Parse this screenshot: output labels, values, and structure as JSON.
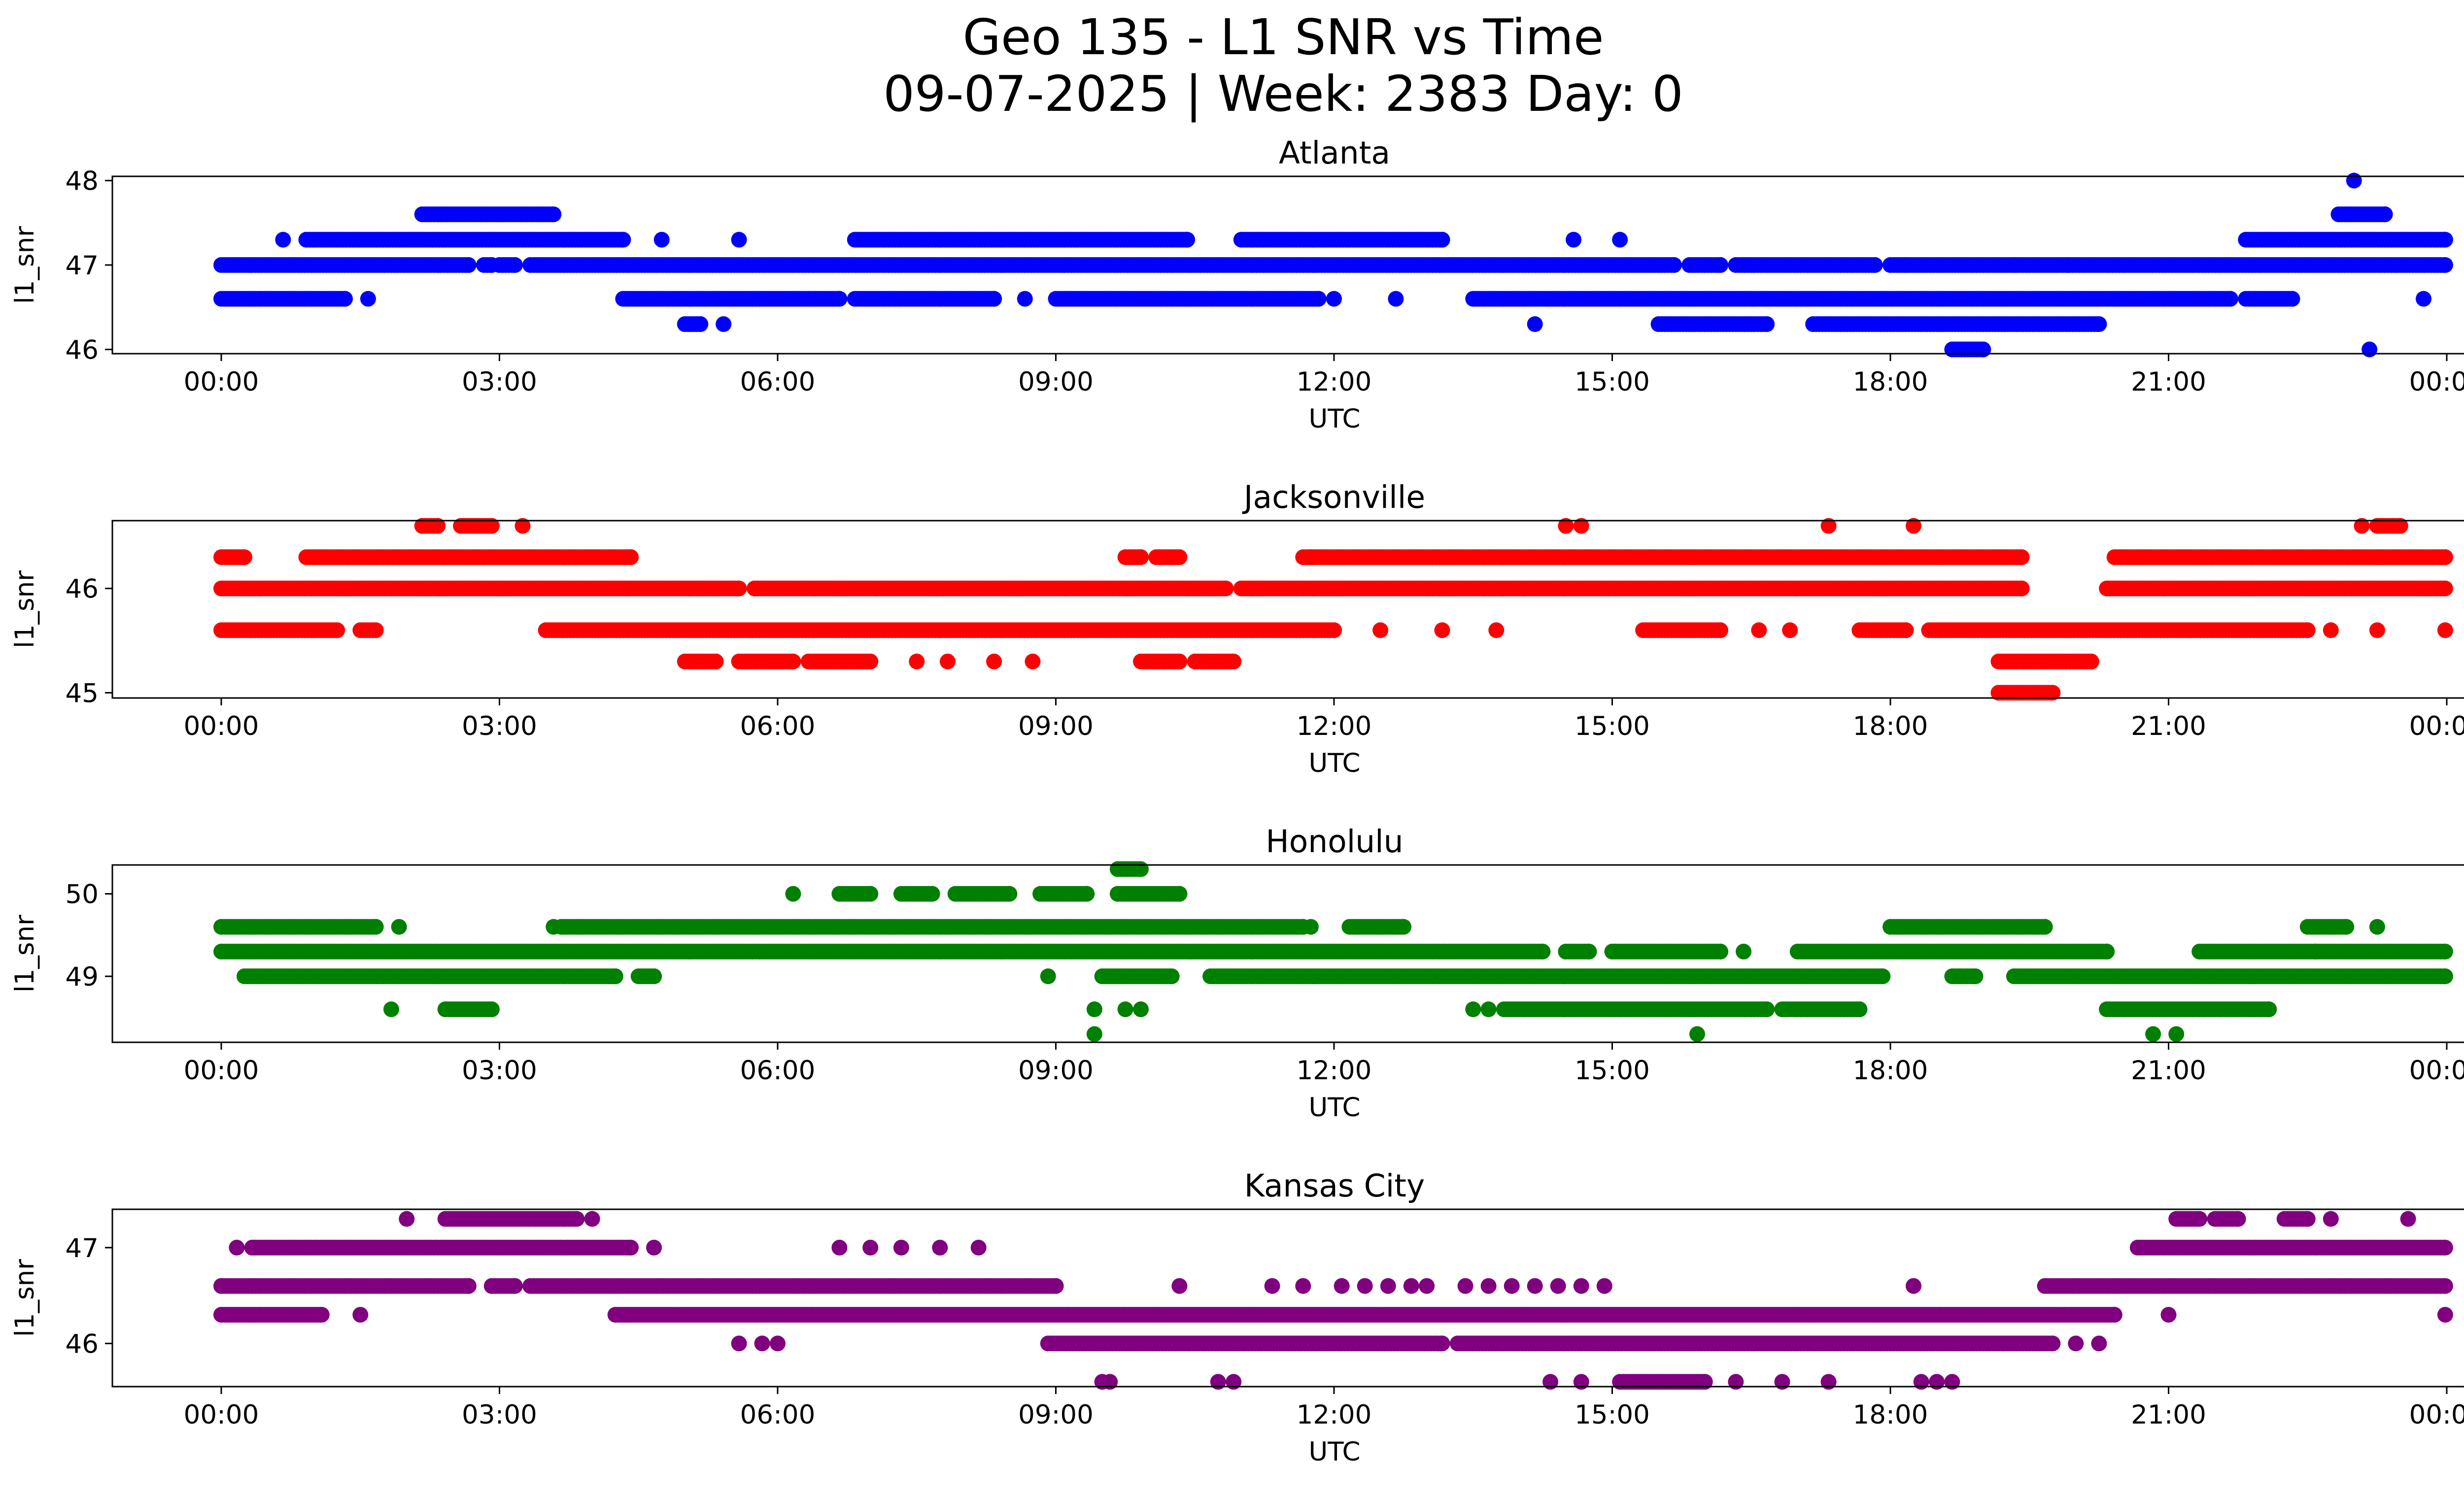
{
  "figure": {
    "title_line1": "Geo 135 - L1 SNR vs Time",
    "title_line2": "09-07-2025 | Week: 2383 Day: 0"
  },
  "chart_data": [
    {
      "type": "scatter",
      "title": "Atlanta",
      "xlabel": "UTC",
      "ylabel": "l1_snr",
      "color": "#0000ff",
      "xlim": [
        "2025-09-07T00:00",
        "2025-09-08T00:00"
      ],
      "ylim": [
        45.95,
        48.05
      ],
      "xticks": [
        "00:00",
        "03:00",
        "06:00",
        "09:00",
        "12:00",
        "15:00",
        "18:00",
        "21:00",
        "00:00"
      ],
      "yticks": [
        46,
        47,
        48
      ],
      "segments": [
        {
          "y": 47.0,
          "ranges": [
            [
              "00:00",
              "02:40"
            ],
            [
              "02:50",
              "02:55"
            ],
            [
              "03:00",
              "03:10"
            ],
            [
              "03:20",
              "15:40"
            ],
            [
              "15:50",
              "16:10"
            ],
            [
              "16:20",
              "17:50"
            ],
            [
              "18:00",
              "23:59"
            ]
          ]
        },
        {
          "y": 46.6,
          "ranges": [
            [
              "00:00",
              "01:20"
            ],
            [
              "04:20",
              "06:40"
            ],
            [
              "06:50",
              "08:20"
            ],
            [
              "09:00",
              "11:50"
            ],
            [
              "13:30",
              "21:40"
            ],
            [
              "21:50",
              "22:20"
            ]
          ]
        },
        {
          "y": 47.3,
          "ranges": [
            [
              "00:40",
              "00:40"
            ],
            [
              "00:55",
              "04:20"
            ],
            [
              "06:50",
              "10:25"
            ],
            [
              "11:00",
              "13:10"
            ],
            [
              "21:50",
              "23:59"
            ]
          ]
        },
        {
          "y": 47.6,
          "ranges": [
            [
              "02:10",
              "03:35"
            ],
            [
              "22:50",
              "23:20"
            ]
          ]
        },
        {
          "y": 46.3,
          "ranges": [
            [
              "05:00",
              "05:10"
            ],
            [
              "15:30",
              "16:40"
            ],
            [
              "17:10",
              "20:15"
            ]
          ]
        },
        {
          "y": 46.0,
          "ranges": [
            [
              "18:40",
              "19:00"
            ],
            [
              "23:10",
              "23:10"
            ]
          ]
        }
      ],
      "points": [
        {
          "x": "01:35",
          "y": 46.6
        },
        {
          "x": "04:45",
          "y": 47.3
        },
        {
          "x": "05:25",
          "y": 46.3
        },
        {
          "x": "05:35",
          "y": 47.3
        },
        {
          "x": "08:40",
          "y": 46.6
        },
        {
          "x": "12:00",
          "y": 46.6
        },
        {
          "x": "12:40",
          "y": 46.6
        },
        {
          "x": "14:10",
          "y": 46.3
        },
        {
          "x": "14:35",
          "y": 47.3
        },
        {
          "x": "15:05",
          "y": 47.3
        },
        {
          "x": "18:10",
          "y": 47.0
        },
        {
          "x": "19:20",
          "y": 47.0
        },
        {
          "x": "19:55",
          "y": 47.0
        },
        {
          "x": "23:00",
          "y": 48.0
        },
        {
          "x": "23:45",
          "y": 46.6
        }
      ]
    },
    {
      "type": "scatter",
      "title": "Jacksonville",
      "xlabel": "UTC",
      "ylabel": "l1_snr",
      "color": "#ff0000",
      "xlim": [
        "2025-09-07T00:00",
        "2025-09-08T00:00"
      ],
      "ylim": [
        44.95,
        46.65
      ],
      "xticks": [
        "00:00",
        "03:00",
        "06:00",
        "09:00",
        "12:00",
        "15:00",
        "18:00",
        "21:00",
        "00:00"
      ],
      "yticks": [
        45,
        46
      ],
      "segments": [
        {
          "y": 46.0,
          "ranges": [
            [
              "00:00",
              "05:35"
            ],
            [
              "05:45",
              "10:50"
            ],
            [
              "11:00",
              "19:25"
            ],
            [
              "20:20",
              "23:59"
            ]
          ]
        },
        {
          "y": 45.6,
          "ranges": [
            [
              "00:00",
              "01:15"
            ],
            [
              "01:30",
              "01:40"
            ],
            [
              "03:30",
              "12:00"
            ],
            [
              "15:20",
              "16:10"
            ],
            [
              "17:40",
              "18:10"
            ],
            [
              "18:25",
              "22:30"
            ]
          ]
        },
        {
          "y": 46.3,
          "ranges": [
            [
              "00:00",
              "00:15"
            ],
            [
              "00:55",
              "04:25"
            ],
            [
              "09:45",
              "09:55"
            ],
            [
              "10:05",
              "10:20"
            ],
            [
              "11:40",
              "19:25"
            ],
            [
              "20:25",
              "23:59"
            ]
          ]
        },
        {
          "y": 45.3,
          "ranges": [
            [
              "05:00",
              "05:20"
            ],
            [
              "05:35",
              "06:10"
            ],
            [
              "06:20",
              "07:00"
            ],
            [
              "09:55",
              "10:20"
            ],
            [
              "10:30",
              "10:55"
            ],
            [
              "19:10",
              "20:10"
            ]
          ]
        },
        {
          "y": 45.0,
          "ranges": [
            [
              "19:10",
              "19:45"
            ]
          ]
        },
        {
          "y": 46.6,
          "ranges": [
            [
              "02:10",
              "02:20"
            ],
            [
              "02:35",
              "02:55"
            ],
            [
              "23:15",
              "23:30"
            ]
          ]
        }
      ],
      "points": [
        {
          "x": "03:15",
          "y": 46.6
        },
        {
          "x": "07:30",
          "y": 45.3
        },
        {
          "x": "07:50",
          "y": 45.3
        },
        {
          "x": "08:20",
          "y": 45.3
        },
        {
          "x": "08:45",
          "y": 45.3
        },
        {
          "x": "11:45",
          "y": 46.3
        },
        {
          "x": "12:30",
          "y": 45.6
        },
        {
          "x": "13:10",
          "y": 45.6
        },
        {
          "x": "13:45",
          "y": 45.6
        },
        {
          "x": "14:30",
          "y": 46.6
        },
        {
          "x": "14:40",
          "y": 46.6
        },
        {
          "x": "16:35",
          "y": 45.6
        },
        {
          "x": "16:55",
          "y": 45.6
        },
        {
          "x": "17:20",
          "y": 46.6
        },
        {
          "x": "18:15",
          "y": 46.6
        },
        {
          "x": "22:45",
          "y": 45.6
        },
        {
          "x": "23:05",
          "y": 46.6
        },
        {
          "x": "23:15",
          "y": 45.6
        },
        {
          "x": "23:59",
          "y": 45.6
        }
      ]
    },
    {
      "type": "scatter",
      "title": "Honolulu",
      "xlabel": "UTC",
      "ylabel": "l1_snr",
      "color": "#008000",
      "xlim": [
        "2025-09-07T00:00",
        "2025-09-08T00:00"
      ],
      "ylim": [
        48.2,
        50.35
      ],
      "xticks": [
        "00:00",
        "03:00",
        "06:00",
        "09:00",
        "12:00",
        "15:00",
        "18:00",
        "21:00",
        "00:00"
      ],
      "yticks": [
        49,
        50
      ],
      "segments": [
        {
          "y": 49.3,
          "ranges": [
            [
              "00:00",
              "14:15"
            ],
            [
              "14:30",
              "14:45"
            ],
            [
              "15:00",
              "16:10"
            ],
            [
              "17:00",
              "20:20"
            ],
            [
              "21:20",
              "23:59"
            ]
          ]
        },
        {
          "y": 49.0,
          "ranges": [
            [
              "00:15",
              "04:15"
            ],
            [
              "04:30",
              "04:40"
            ],
            [
              "09:30",
              "10:15"
            ],
            [
              "10:40",
              "17:55"
            ],
            [
              "18:40",
              "18:55"
            ],
            [
              "19:20",
              "23:59"
            ]
          ]
        },
        {
          "y": 49.6,
          "ranges": [
            [
              "00:00",
              "01:40"
            ],
            [
              "03:40",
              "11:40"
            ],
            [
              "12:10",
              "12:45"
            ],
            [
              "18:00",
              "19:40"
            ],
            [
              "22:30",
              "22:55"
            ]
          ]
        },
        {
          "y": 48.6,
          "ranges": [
            [
              "02:25",
              "02:55"
            ],
            [
              "13:50",
              "16:40"
            ],
            [
              "16:50",
              "17:40"
            ],
            [
              "20:20",
              "22:05"
            ]
          ]
        },
        {
          "y": 50.0,
          "ranges": [
            [
              "06:40",
              "07:00"
            ],
            [
              "07:20",
              "07:40"
            ],
            [
              "07:55",
              "08:30"
            ],
            [
              "08:50",
              "09:20"
            ],
            [
              "09:40",
              "10:20"
            ]
          ]
        },
        {
          "y": 50.3,
          "ranges": [
            [
              "09:40",
              "09:55"
            ]
          ]
        }
      ],
      "points": [
        {
          "x": "01:55",
          "y": 49.6
        },
        {
          "x": "01:50",
          "y": 48.6
        },
        {
          "x": "03:35",
          "y": 49.6
        },
        {
          "x": "06:10",
          "y": 50.0
        },
        {
          "x": "08:55",
          "y": 49.0
        },
        {
          "x": "09:25",
          "y": 48.6
        },
        {
          "x": "09:25",
          "y": 48.3
        },
        {
          "x": "09:45",
          "y": 48.6
        },
        {
          "x": "09:55",
          "y": 48.6
        },
        {
          "x": "11:45",
          "y": 49.6
        },
        {
          "x": "13:30",
          "y": 48.6
        },
        {
          "x": "13:40",
          "y": 48.6
        },
        {
          "x": "15:55",
          "y": 48.3
        },
        {
          "x": "16:25",
          "y": 49.3
        },
        {
          "x": "18:45",
          "y": 49.0
        },
        {
          "x": "20:50",
          "y": 48.3
        },
        {
          "x": "21:05",
          "y": 48.3
        },
        {
          "x": "22:35",
          "y": 49.3
        },
        {
          "x": "23:15",
          "y": 49.6
        }
      ]
    },
    {
      "type": "scatter",
      "title": "Kansas City",
      "xlabel": "UTC",
      "ylabel": "l1_snr",
      "color": "#800080",
      "xlim": [
        "2025-09-07T00:00",
        "2025-09-08T00:00"
      ],
      "ylim": [
        45.55,
        47.4
      ],
      "xticks": [
        "00:00",
        "03:00",
        "06:00",
        "09:00",
        "12:00",
        "15:00",
        "18:00",
        "21:00",
        "00:00"
      ],
      "yticks": [
        46,
        47
      ],
      "segments": [
        {
          "y": 46.6,
          "ranges": [
            [
              "00:00",
              "02:40"
            ],
            [
              "02:55",
              "03:10"
            ],
            [
              "03:20",
              "09:00"
            ],
            [
              "19:40",
              "23:59"
            ]
          ]
        },
        {
          "y": 46.3,
          "ranges": [
            [
              "00:00",
              "01:05"
            ],
            [
              "04:15",
              "20:25"
            ]
          ]
        },
        {
          "y": 47.0,
          "ranges": [
            [
              "00:20",
              "04:25"
            ],
            [
              "20:40",
              "23:59"
            ]
          ]
        },
        {
          "y": 46.0,
          "ranges": [
            [
              "08:55",
              "13:10"
            ],
            [
              "13:20",
              "19:45"
            ]
          ]
        },
        {
          "y": 47.3,
          "ranges": [
            [
              "02:25",
              "03:50"
            ],
            [
              "21:05",
              "21:20"
            ],
            [
              "21:30",
              "21:45"
            ],
            [
              "22:15",
              "22:30"
            ]
          ]
        },
        {
          "y": 45.6,
          "ranges": [
            [
              "15:05",
              "16:00"
            ]
          ]
        }
      ],
      "points": [
        {
          "x": "00:10",
          "y": 47.0
        },
        {
          "x": "01:30",
          "y": 46.3
        },
        {
          "x": "02:00",
          "y": 47.3
        },
        {
          "x": "04:00",
          "y": 47.3
        },
        {
          "x": "04:40",
          "y": 47.0
        },
        {
          "x": "05:35",
          "y": 46.0
        },
        {
          "x": "05:50",
          "y": 46.0
        },
        {
          "x": "06:00",
          "y": 46.0
        },
        {
          "x": "06:40",
          "y": 47.0
        },
        {
          "x": "07:00",
          "y": 47.0
        },
        {
          "x": "07:20",
          "y": 47.0
        },
        {
          "x": "07:45",
          "y": 47.0
        },
        {
          "x": "08:10",
          "y": 47.0
        },
        {
          "x": "09:30",
          "y": 45.6
        },
        {
          "x": "09:35",
          "y": 45.6
        },
        {
          "x": "10:20",
          "y": 46.6
        },
        {
          "x": "10:45",
          "y": 45.6
        },
        {
          "x": "10:55",
          "y": 45.6
        },
        {
          "x": "11:20",
          "y": 46.6
        },
        {
          "x": "11:40",
          "y": 46.6
        },
        {
          "x": "12:05",
          "y": 46.6
        },
        {
          "x": "12:20",
          "y": 46.6
        },
        {
          "x": "12:35",
          "y": 46.6
        },
        {
          "x": "12:50",
          "y": 46.6
        },
        {
          "x": "13:00",
          "y": 46.6
        },
        {
          "x": "13:25",
          "y": 46.6
        },
        {
          "x": "13:40",
          "y": 46.6
        },
        {
          "x": "13:55",
          "y": 46.6
        },
        {
          "x": "14:10",
          "y": 46.6
        },
        {
          "x": "14:25",
          "y": 46.6
        },
        {
          "x": "14:20",
          "y": 45.6
        },
        {
          "x": "14:40",
          "y": 46.6
        },
        {
          "x": "14:55",
          "y": 46.6
        },
        {
          "x": "14:40",
          "y": 45.6
        },
        {
          "x": "16:20",
          "y": 45.6
        },
        {
          "x": "16:50",
          "y": 45.6
        },
        {
          "x": "17:20",
          "y": 45.6
        },
        {
          "x": "18:15",
          "y": 46.6
        },
        {
          "x": "18:20",
          "y": 45.6
        },
        {
          "x": "18:30",
          "y": 45.6
        },
        {
          "x": "18:40",
          "y": 45.6
        },
        {
          "x": "20:00",
          "y": 46.0
        },
        {
          "x": "20:15",
          "y": 46.0
        },
        {
          "x": "21:00",
          "y": 46.3
        },
        {
          "x": "22:45",
          "y": 47.3
        },
        {
          "x": "23:35",
          "y": 47.3
        },
        {
          "x": "23:59",
          "y": 46.3
        }
      ]
    }
  ]
}
